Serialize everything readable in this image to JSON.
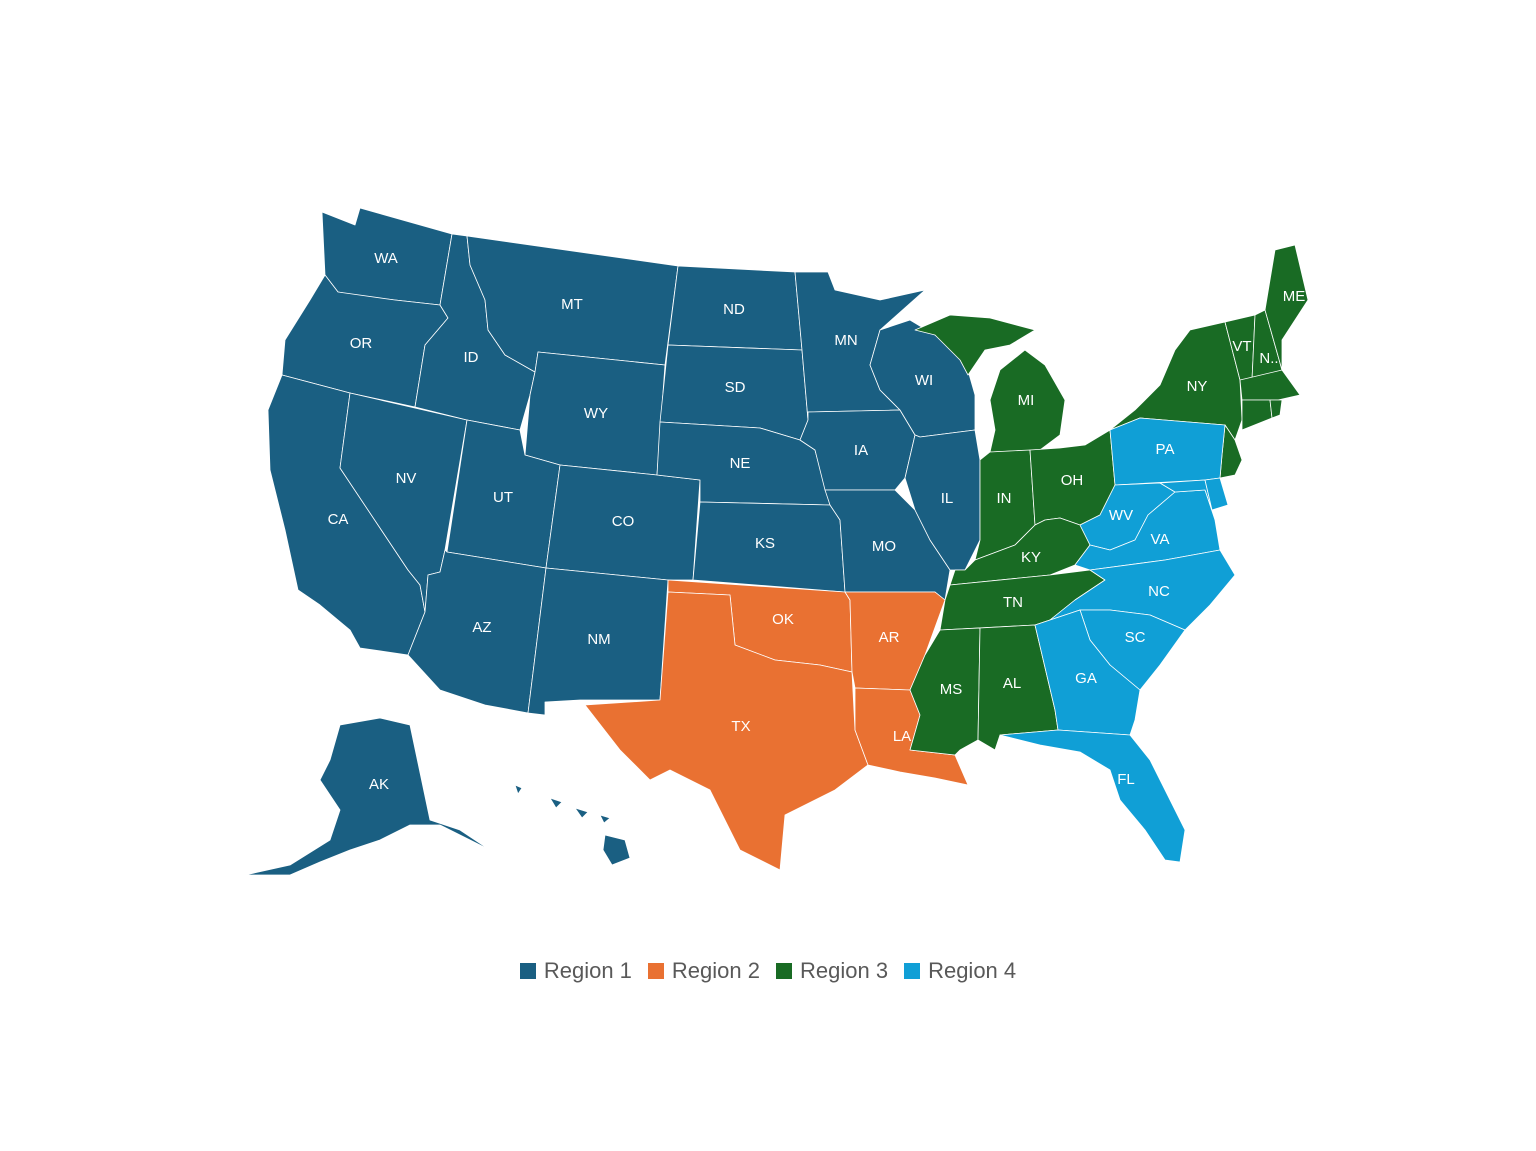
{
  "colors": {
    "region_1": "#1a5f82",
    "region_2": "#e97132",
    "region_3": "#196b24",
    "region_4": "#109fd6"
  },
  "legend": [
    {
      "key": "region_1",
      "label": "Region 1"
    },
    {
      "key": "region_2",
      "label": "Region 2"
    },
    {
      "key": "region_3",
      "label": "Region 3"
    },
    {
      "key": "region_4",
      "label": "Region 4"
    }
  ],
  "states": {
    "WA": {
      "label": "WA",
      "region": "region_1"
    },
    "OR": {
      "label": "OR",
      "region": "region_1"
    },
    "CA": {
      "label": "CA",
      "region": "region_1"
    },
    "NV": {
      "label": "NV",
      "region": "region_1"
    },
    "ID": {
      "label": "ID",
      "region": "region_1"
    },
    "MT": {
      "label": "MT",
      "region": "region_1"
    },
    "WY": {
      "label": "WY",
      "region": "region_1"
    },
    "UT": {
      "label": "UT",
      "region": "region_1"
    },
    "AZ": {
      "label": "AZ",
      "region": "region_1"
    },
    "CO": {
      "label": "CO",
      "region": "region_1"
    },
    "NM": {
      "label": "NM",
      "region": "region_1"
    },
    "ND": {
      "label": "ND",
      "region": "region_1"
    },
    "SD": {
      "label": "SD",
      "region": "region_1"
    },
    "NE": {
      "label": "NE",
      "region": "region_1"
    },
    "KS": {
      "label": "KS",
      "region": "region_1"
    },
    "MN": {
      "label": "MN",
      "region": "region_1"
    },
    "IA": {
      "label": "IA",
      "region": "region_1"
    },
    "MO": {
      "label": "MO",
      "region": "region_1"
    },
    "WI": {
      "label": "WI",
      "region": "region_1"
    },
    "IL": {
      "label": "IL",
      "region": "region_1"
    },
    "AK": {
      "label": "AK",
      "region": "region_1"
    },
    "HI": {
      "label": "",
      "region": "region_1"
    },
    "OK": {
      "label": "OK",
      "region": "region_2"
    },
    "TX": {
      "label": "TX",
      "region": "region_2"
    },
    "AR": {
      "label": "AR",
      "region": "region_2"
    },
    "LA": {
      "label": "LA",
      "region": "region_2"
    },
    "MI": {
      "label": "MI",
      "region": "region_3"
    },
    "IN": {
      "label": "IN",
      "region": "region_3"
    },
    "OH": {
      "label": "OH",
      "region": "region_3"
    },
    "KY": {
      "label": "KY",
      "region": "region_3"
    },
    "TN": {
      "label": "TN",
      "region": "region_3"
    },
    "MS": {
      "label": "MS",
      "region": "region_3"
    },
    "AL": {
      "label": "AL",
      "region": "region_3"
    },
    "NY": {
      "label": "NY",
      "region": "region_3"
    },
    "VT": {
      "label": "VT",
      "region": "region_3"
    },
    "NH": {
      "label": "N..",
      "region": "region_3"
    },
    "ME": {
      "label": "ME",
      "region": "region_3"
    },
    "MA": {
      "label": "",
      "region": "region_3"
    },
    "CT": {
      "label": "",
      "region": "region_3"
    },
    "RI": {
      "label": "",
      "region": "region_3"
    },
    "NJ": {
      "label": "",
      "region": "region_3"
    },
    "PA": {
      "label": "PA",
      "region": "region_4"
    },
    "WV": {
      "label": "WV",
      "region": "region_4"
    },
    "VA": {
      "label": "VA",
      "region": "region_4"
    },
    "MD": {
      "label": "",
      "region": "region_4"
    },
    "DE": {
      "label": "",
      "region": "region_4"
    },
    "NC": {
      "label": "NC",
      "region": "region_4"
    },
    "SC": {
      "label": "SC",
      "region": "region_4"
    },
    "GA": {
      "label": "GA",
      "region": "region_4"
    },
    "FL": {
      "label": "FL",
      "region": "region_4"
    }
  }
}
